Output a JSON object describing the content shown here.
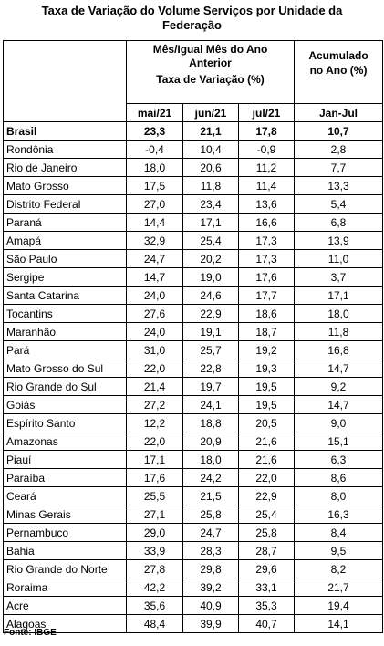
{
  "title": {
    "line1": "Taxa de Variação do Volume Serviços por Unidade da",
    "line2": "Federação"
  },
  "header": {
    "group_line1": "Mês/Igual Mês do Ano",
    "group_line2": "Anterior",
    "group_line3": "Taxa de Variação (%)",
    "acc_line1": "Acumulado",
    "acc_line2": "no Ano (%)",
    "col_mai": "mai/21",
    "col_jun": "jun/21",
    "col_jul": "jul/21",
    "col_acc": "Jan-Jul"
  },
  "rows": [
    {
      "name": "Brasil",
      "mai": "23,3",
      "jun": "21,1",
      "jul": "17,8",
      "acc": "10,7"
    },
    {
      "name": "Rondônia",
      "mai": "-0,4",
      "jun": "10,4",
      "jul": "-0,9",
      "acc": "2,8"
    },
    {
      "name": "Rio de Janeiro",
      "mai": "18,0",
      "jun": "20,6",
      "jul": "11,2",
      "acc": "7,7"
    },
    {
      "name": "Mato Grosso",
      "mai": "17,5",
      "jun": "11,8",
      "jul": "11,4",
      "acc": "13,3"
    },
    {
      "name": "Distrito Federal",
      "mai": "27,0",
      "jun": "23,4",
      "jul": "13,6",
      "acc": "5,4"
    },
    {
      "name": "Paraná",
      "mai": "14,4",
      "jun": "17,1",
      "jul": "16,6",
      "acc": "6,8"
    },
    {
      "name": "Amapá",
      "mai": "32,9",
      "jun": "25,4",
      "jul": "17,3",
      "acc": "13,9"
    },
    {
      "name": "São Paulo",
      "mai": "24,7",
      "jun": "20,2",
      "jul": "17,3",
      "acc": "11,0"
    },
    {
      "name": "Sergipe",
      "mai": "14,7",
      "jun": "19,0",
      "jul": "17,6",
      "acc": "3,7"
    },
    {
      "name": "Santa Catarina",
      "mai": "24,0",
      "jun": "24,6",
      "jul": "17,7",
      "acc": "17,1"
    },
    {
      "name": "Tocantins",
      "mai": "27,6",
      "jun": "22,9",
      "jul": "18,6",
      "acc": "18,0"
    },
    {
      "name": "Maranhão",
      "mai": "24,0",
      "jun": "19,1",
      "jul": "18,7",
      "acc": "11,8"
    },
    {
      "name": "Pará",
      "mai": "31,0",
      "jun": "25,7",
      "jul": "19,2",
      "acc": "16,8"
    },
    {
      "name": "Mato Grosso do Sul",
      "mai": "22,0",
      "jun": "22,8",
      "jul": "19,3",
      "acc": "14,7"
    },
    {
      "name": "Rio Grande do Sul",
      "mai": "21,4",
      "jun": "19,7",
      "jul": "19,5",
      "acc": "9,2"
    },
    {
      "name": "Goiás",
      "mai": "27,2",
      "jun": "24,1",
      "jul": "19,5",
      "acc": "14,7"
    },
    {
      "name": "Espírito Santo",
      "mai": "12,2",
      "jun": "18,8",
      "jul": "20,5",
      "acc": "9,0"
    },
    {
      "name": "Amazonas",
      "mai": "22,0",
      "jun": "20,9",
      "jul": "21,6",
      "acc": "15,1"
    },
    {
      "name": "Piauí",
      "mai": "17,1",
      "jun": "18,0",
      "jul": "21,6",
      "acc": "6,3"
    },
    {
      "name": "Paraíba",
      "mai": "17,6",
      "jun": "24,2",
      "jul": "22,0",
      "acc": "8,6"
    },
    {
      "name": "Ceará",
      "mai": "25,5",
      "jun": "21,5",
      "jul": "22,9",
      "acc": "8,0"
    },
    {
      "name": "Minas Gerais",
      "mai": "27,1",
      "jun": "25,8",
      "jul": "25,4",
      "acc": "16,3"
    },
    {
      "name": "Pernambuco",
      "mai": "29,0",
      "jun": "24,7",
      "jul": "25,8",
      "acc": "8,4"
    },
    {
      "name": "Bahia",
      "mai": "33,9",
      "jun": "28,3",
      "jul": "28,7",
      "acc": "9,5"
    },
    {
      "name": "Rio Grande do Norte",
      "mai": "27,8",
      "jun": "29,8",
      "jul": "29,6",
      "acc": "8,2"
    },
    {
      "name": "Roraima",
      "mai": "42,2",
      "jun": "39,2",
      "jul": "33,1",
      "acc": "21,7"
    },
    {
      "name": "Acre",
      "mai": "35,6",
      "jun": "40,9",
      "jul": "35,3",
      "acc": "19,4"
    },
    {
      "name": "Alagoas",
      "mai": "48,4",
      "jun": "39,9",
      "jul": "40,7",
      "acc": "14,1"
    }
  ],
  "source": "Fonte: IBGE"
}
